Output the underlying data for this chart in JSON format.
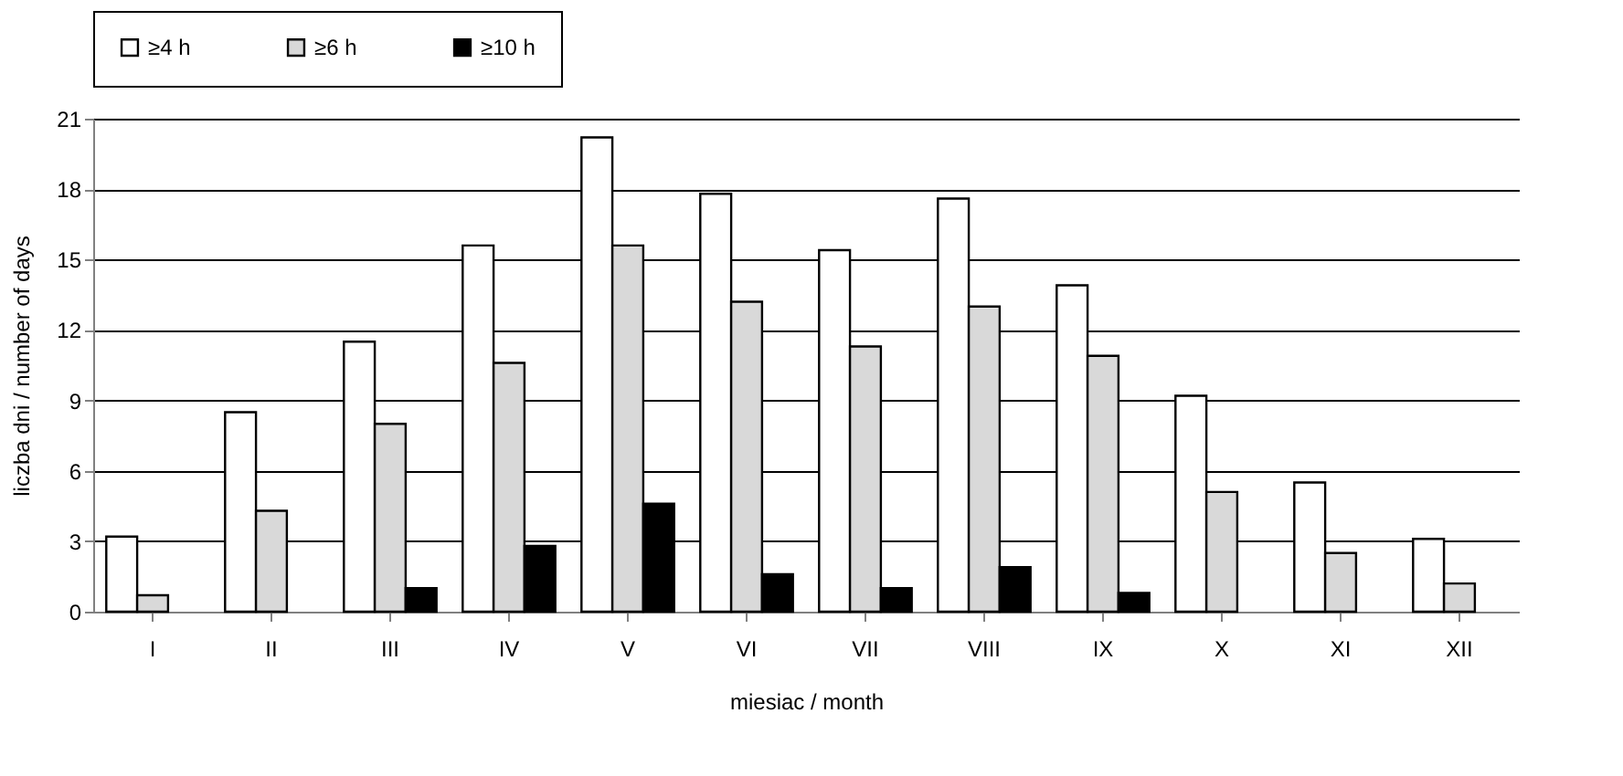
{
  "chart_data": {
    "type": "bar",
    "xlabel": "miesiac / month",
    "ylabel": "liczba dni  / number of days",
    "categories": [
      "I",
      "II",
      "III",
      "IV",
      "V",
      "VI",
      "VII",
      "VIII",
      "IX",
      "X",
      "XI",
      "XII"
    ],
    "series": [
      {
        "name": "≥4 h",
        "color": "#ffffff",
        "values": [
          3.2,
          8.5,
          11.5,
          15.6,
          20.2,
          17.8,
          15.4,
          17.6,
          13.9,
          9.2,
          5.5,
          3.1
        ]
      },
      {
        "name": "≥6 h",
        "color": "#d9d9d9",
        "values": [
          0.7,
          4.3,
          8.0,
          10.6,
          15.6,
          13.2,
          11.3,
          13.0,
          10.9,
          5.1,
          2.5,
          1.2
        ]
      },
      {
        "name": "≥10 h",
        "color": "#000000",
        "values": [
          null,
          null,
          1.0,
          2.8,
          4.6,
          1.6,
          1.0,
          1.9,
          0.8,
          null,
          null,
          null
        ]
      }
    ],
    "ylim": [
      0,
      21
    ],
    "yticks": [
      0,
      3,
      6,
      9,
      12,
      15,
      18,
      21
    ],
    "grid": "y",
    "legend": "top"
  }
}
